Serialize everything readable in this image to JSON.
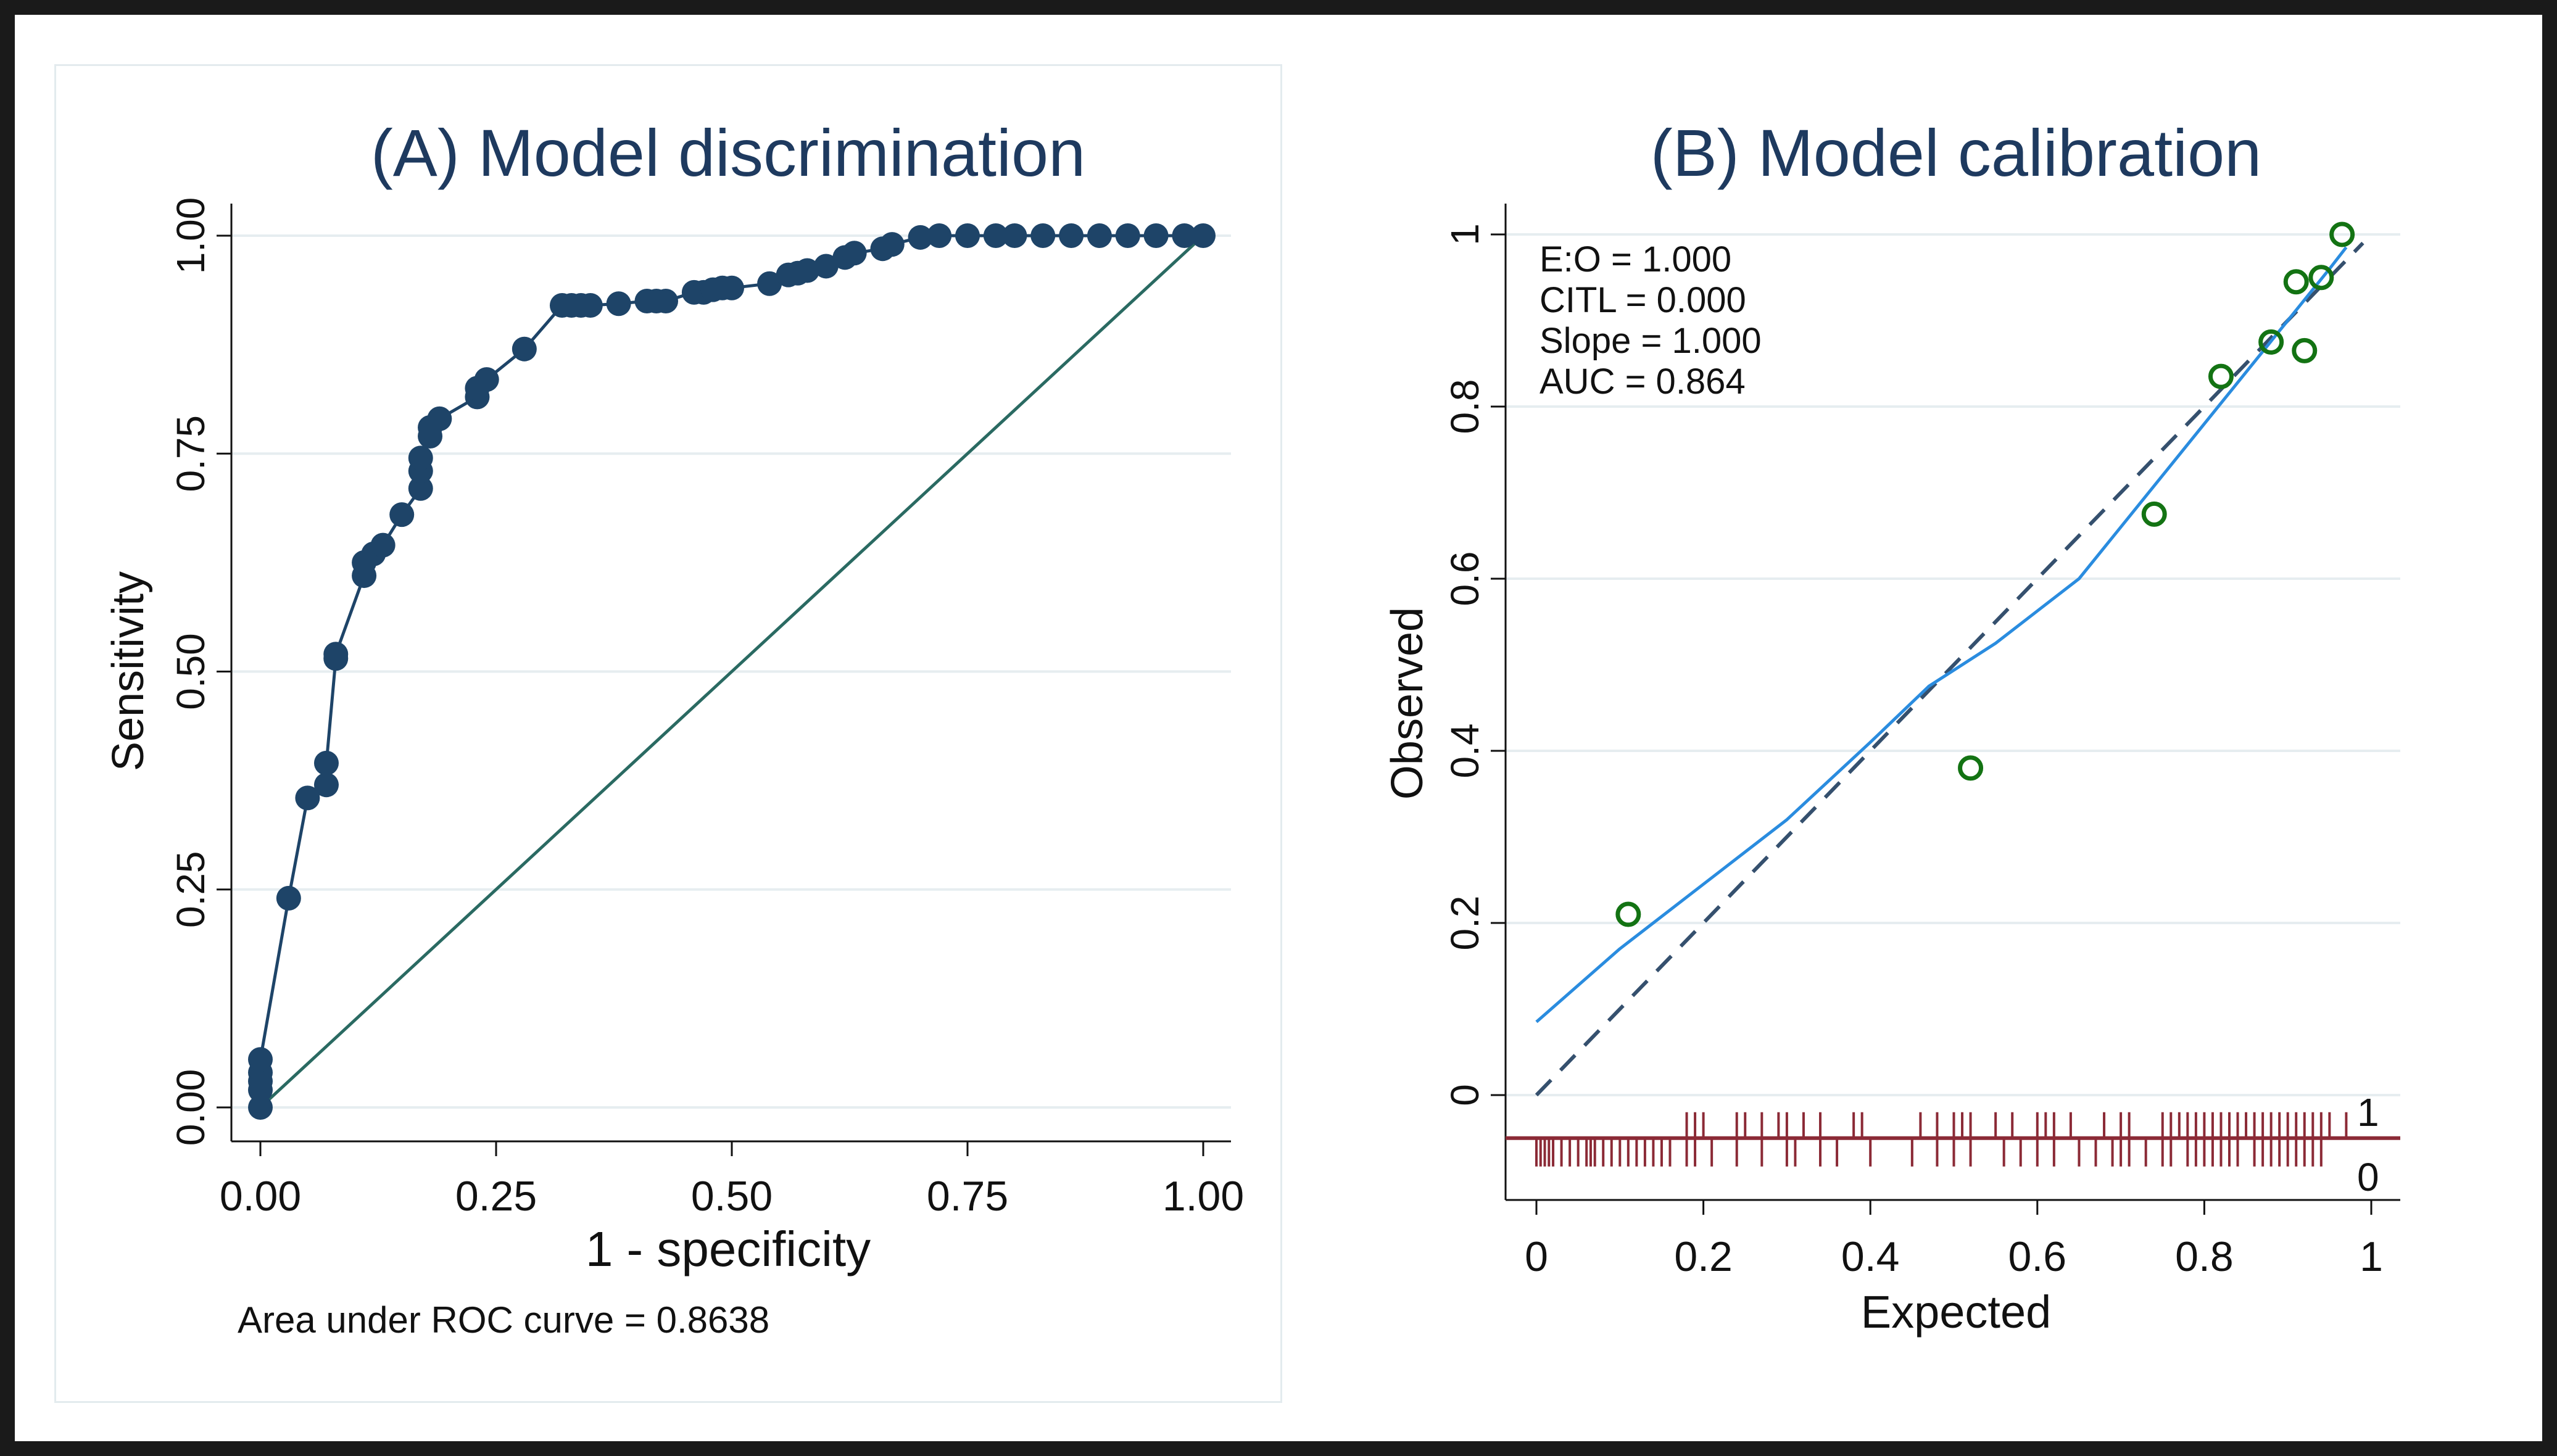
{
  "colors": {
    "roc": "#1e4468",
    "diagonal": "#2a6a62",
    "grid": "#e6edf0",
    "title": "#1e3a5f",
    "points": "#137313",
    "smooth": "#2a8cdf",
    "ideal": "#35506e",
    "rug": "#8b2a36"
  },
  "chart_data": [
    {
      "type": "line",
      "panel": "A",
      "title": "(A) Model discrimination",
      "xlabel": "1 - specificity",
      "ylabel": "Sensitivity",
      "xlim": [
        0,
        1
      ],
      "ylim": [
        0,
        1
      ],
      "xticks": [
        "0.00",
        "0.25",
        "0.50",
        "0.75",
        "1.00"
      ],
      "yticks": [
        "0.00",
        "0.25",
        "0.50",
        "0.75",
        "1.00"
      ],
      "note": "Area under ROC curve = 0.8638",
      "series": [
        {
          "name": "ROC",
          "x": [
            0,
            0,
            0,
            0,
            0,
            0.03,
            0.05,
            0.07,
            0.07,
            0.08,
            0.08,
            0.11,
            0.11,
            0.12,
            0.13,
            0.15,
            0.17,
            0.17,
            0.17,
            0.18,
            0.18,
            0.19,
            0.23,
            0.23,
            0.24,
            0.28,
            0.32,
            0.33,
            0.34,
            0.35,
            0.38,
            0.41,
            0.42,
            0.43,
            0.46,
            0.47,
            0.48,
            0.49,
            0.5,
            0.54,
            0.56,
            0.57,
            0.58,
            0.6,
            0.62,
            0.63,
            0.66,
            0.67,
            0.7,
            0.72,
            0.75,
            0.78,
            0.8,
            0.83,
            0.86,
            0.89,
            0.92,
            0.95,
            0.98,
            1.0
          ],
          "y": [
            0,
            0.02,
            0.03,
            0.04,
            0.055,
            0.24,
            0.355,
            0.37,
            0.395,
            0.515,
            0.52,
            0.61,
            0.625,
            0.635,
            0.645,
            0.68,
            0.71,
            0.73,
            0.745,
            0.77,
            0.78,
            0.79,
            0.815,
            0.825,
            0.835,
            0.87,
            0.92,
            0.92,
            0.92,
            0.92,
            0.922,
            0.925,
            0.925,
            0.925,
            0.935,
            0.935,
            0.938,
            0.94,
            0.94,
            0.945,
            0.955,
            0.957,
            0.96,
            0.965,
            0.975,
            0.98,
            0.985,
            0.99,
            0.998,
            1.0,
            1.0,
            1.0,
            1.0,
            1.0,
            1.0,
            1.0,
            1.0,
            1.0,
            1.0,
            1.0
          ]
        },
        {
          "name": "Reference",
          "x": [
            0,
            1
          ],
          "y": [
            0,
            1
          ]
        }
      ]
    },
    {
      "type": "scatter",
      "panel": "B",
      "title": "(B) Model calibration",
      "xlabel": "Expected",
      "ylabel": "Observed",
      "xlim": [
        0,
        1
      ],
      "ylim": [
        -0.13,
        1.02
      ],
      "xticks": [
        "0",
        "0.2",
        "0.4",
        "0.6",
        "0.8",
        "1"
      ],
      "yticks": [
        "0",
        "0.2",
        "0.4",
        "0.6",
        "0.8",
        "1"
      ],
      "stats": [
        "E:O = 1.000",
        "CITL = 0.000",
        "Slope = 1.000",
        "AUC = 0.864"
      ],
      "rug_labels": [
        "1",
        "0"
      ],
      "groups": {
        "x": [
          0.11,
          0.52,
          0.74,
          0.82,
          0.88,
          0.91,
          0.92,
          0.94,
          0.965
        ],
        "y": [
          0.21,
          0.38,
          0.675,
          0.835,
          0.875,
          0.945,
          0.865,
          0.95,
          1.0
        ]
      },
      "smooth": {
        "x": [
          0,
          0.1,
          0.2,
          0.3,
          0.4,
          0.47,
          0.55,
          0.65,
          0.75,
          0.85,
          0.9,
          0.95,
          0.97
        ],
        "y": [
          0.085,
          0.17,
          0.245,
          0.32,
          0.41,
          0.475,
          0.525,
          0.6,
          0.72,
          0.84,
          0.9,
          0.96,
          0.985
        ]
      },
      "ideal": {
        "x": [
          0,
          0.99
        ],
        "y": [
          0,
          0.99
        ]
      },
      "rug_events": [
        0.18,
        0.19,
        0.2,
        0.24,
        0.25,
        0.27,
        0.29,
        0.3,
        0.32,
        0.34,
        0.38,
        0.39,
        0.46,
        0.48,
        0.5,
        0.51,
        0.52,
        0.55,
        0.57,
        0.6,
        0.61,
        0.62,
        0.64,
        0.68,
        0.7,
        0.71,
        0.75,
        0.76,
        0.77,
        0.78,
        0.79,
        0.8,
        0.81,
        0.82,
        0.83,
        0.84,
        0.85,
        0.86,
        0.87,
        0.88,
        0.89,
        0.9,
        0.91,
        0.92,
        0.93,
        0.94,
        0.95,
        0.97
      ],
      "rug_nonevents": [
        0.0,
        0.005,
        0.01,
        0.015,
        0.02,
        0.03,
        0.04,
        0.05,
        0.06,
        0.065,
        0.07,
        0.08,
        0.09,
        0.1,
        0.11,
        0.12,
        0.13,
        0.14,
        0.15,
        0.16,
        0.18,
        0.19,
        0.21,
        0.24,
        0.27,
        0.3,
        0.31,
        0.34,
        0.36,
        0.4,
        0.45,
        0.48,
        0.5,
        0.52,
        0.56,
        0.58,
        0.6,
        0.62,
        0.65,
        0.67,
        0.69,
        0.7,
        0.71,
        0.73,
        0.75,
        0.76,
        0.78,
        0.79,
        0.8,
        0.81,
        0.82,
        0.83,
        0.84,
        0.86,
        0.87,
        0.88,
        0.89,
        0.9,
        0.91,
        0.92,
        0.93,
        0.94
      ]
    }
  ]
}
